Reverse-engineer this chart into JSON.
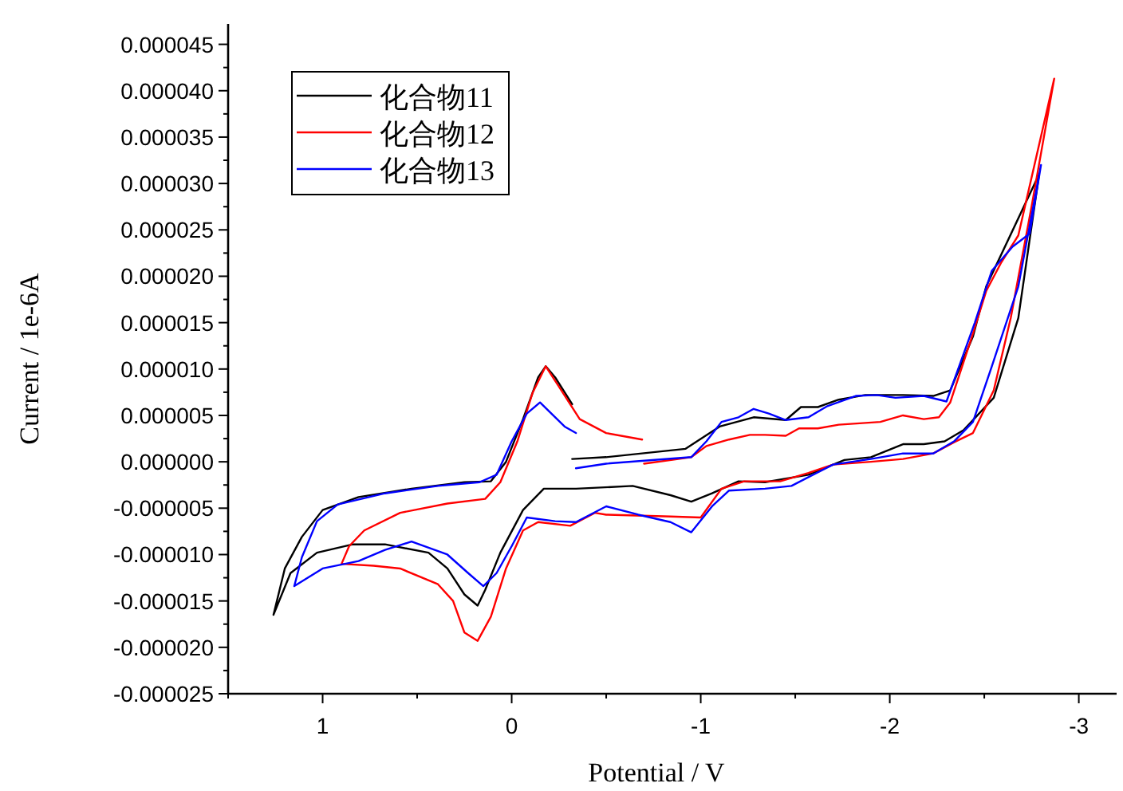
{
  "chart_data": {
    "type": "line",
    "xlabel": "Potential / V",
    "ylabel": "Current / 1e-6A",
    "legend": "top left",
    "xlim": [
      1.5,
      -3.2
    ],
    "ylim": [
      -2.5e-05,
      4.72e-05
    ],
    "xticks": [
      {
        "value": 1.5,
        "label": null
      },
      1,
      {
        "value": 0.5,
        "label": null
      },
      0,
      {
        "value": -0.5,
        "label": null
      },
      -1,
      {
        "value": -1.5,
        "label": null
      },
      -2,
      {
        "value": -2.5,
        "label": null
      },
      -3
    ],
    "yticks": [
      {
        "value": -2.5e-05,
        "label": "-0.000025"
      },
      {
        "value": -2.25e-05,
        "label": null
      },
      {
        "value": -2e-05,
        "label": "-0.000020"
      },
      {
        "value": -1.75e-05,
        "label": null
      },
      {
        "value": -1.5e-05,
        "label": "-0.000015"
      },
      {
        "value": -1.25e-05,
        "label": null
      },
      {
        "value": -1e-05,
        "label": "-0.000010"
      },
      {
        "value": -7.5e-06,
        "label": null
      },
      {
        "value": -5e-06,
        "label": "-0.000005"
      },
      {
        "value": -2.5e-06,
        "label": null
      },
      {
        "value": 0,
        "label": "0.000000"
      },
      {
        "value": 2.5e-06,
        "label": null
      },
      {
        "value": 5e-06,
        "label": "0.000005"
      },
      {
        "value": 7.5e-06,
        "label": null
      },
      {
        "value": 1e-05,
        "label": "0.000010"
      },
      {
        "value": 1.25e-05,
        "label": null
      },
      {
        "value": 1.5e-05,
        "label": "0.000015"
      },
      {
        "value": 1.75e-05,
        "label": null
      },
      {
        "value": 2e-05,
        "label": "0.000020"
      },
      {
        "value": 2.25e-05,
        "label": null
      },
      {
        "value": 2.5e-05,
        "label": "0.000025"
      },
      {
        "value": 2.75e-05,
        "label": null
      },
      {
        "value": 3e-05,
        "label": "0.000030"
      },
      {
        "value": 3.25e-05,
        "label": null
      },
      {
        "value": 3.5e-05,
        "label": "0.000035"
      },
      {
        "value": 3.75e-05,
        "label": null
      },
      {
        "value": 4e-05,
        "label": "0.000040"
      },
      {
        "value": 4.25e-05,
        "label": null
      },
      {
        "value": 4.5e-05,
        "label": "0.000045"
      }
    ],
    "series": [
      {
        "name": "化合物11",
        "color": "#000000",
        "x": [
          -0.32,
          -0.5,
          -0.92,
          -1.1,
          -1.28,
          -1.45,
          -1.53,
          -1.62,
          -1.73,
          -1.87,
          -2.07,
          -2.23,
          -2.32,
          -2.44,
          -2.51,
          -2.79,
          -2.68,
          -2.55,
          -2.39,
          -2.29,
          -2.18,
          -2.07,
          -1.9,
          -1.76,
          -1.57,
          -1.34,
          -1.2,
          -1.06,
          -0.95,
          -0.84,
          -0.64,
          -0.34,
          -0.17,
          -0.06,
          0.06,
          0.14,
          0.18,
          0.25,
          0.34,
          0.44,
          0.67,
          0.84,
          1.03,
          1.17,
          1.26,
          1.2,
          1.11,
          1.0,
          0.81,
          0.53,
          0.25,
          0.11,
          0.03,
          -0.06,
          -0.14,
          -0.18,
          -0.23,
          -0.32
        ],
        "values": [
          3e-07,
          5e-07,
          1.4e-06,
          3.8e-06,
          4.8e-06,
          4.5e-06,
          5.9e-06,
          5.9e-06,
          6.7e-06,
          7.2e-06,
          7.2e-06,
          7.1e-06,
          7.7e-06,
          1.35e-05,
          1.89e-05,
          3.1e-05,
          1.55e-05,
          6.9e-06,
          3.4e-06,
          2.2e-06,
          1.9e-06,
          1.9e-06,
          5e-07,
          2e-07,
          -1.4e-06,
          -2.2e-06,
          -2.1e-06,
          -3.4e-06,
          -4.3e-06,
          -3.6e-06,
          -2.6e-06,
          -2.9e-06,
          -2.9e-06,
          -5.2e-06,
          -9.8e-06,
          -1.38e-05,
          -1.55e-05,
          -1.43e-05,
          -1.15e-05,
          -9.8e-06,
          -8.9e-06,
          -8.9e-06,
          -9.8e-06,
          -1.2e-05,
          -1.65e-05,
          -1.15e-05,
          -8.1e-06,
          -5.2e-06,
          -3.8e-06,
          -2.9e-06,
          -2.2e-06,
          -2.1e-06,
          0,
          4.6e-06,
          9.1e-06,
          1.03e-05,
          9.1e-06,
          6.2e-06
        ]
      },
      {
        "name": "化合物12",
        "color": "#ff0000",
        "x": [
          -0.7,
          -0.95,
          -1.03,
          -1.15,
          -1.26,
          -1.34,
          -1.45,
          -1.52,
          -1.62,
          -1.73,
          -1.95,
          -2.07,
          -2.18,
          -2.26,
          -2.32,
          -2.43,
          -2.51,
          -2.59,
          -2.68,
          -2.87,
          -2.75,
          -2.64,
          -2.55,
          -2.44,
          -2.34,
          -2.23,
          -2.07,
          -1.9,
          -1.7,
          -1.57,
          -1.42,
          -1.23,
          -1.11,
          -1.0,
          -0.84,
          -0.5,
          -0.44,
          -0.31,
          -0.14,
          -0.06,
          0.03,
          0.11,
          0.18,
          0.25,
          0.31,
          0.39,
          0.59,
          0.73,
          0.9,
          0.86,
          0.78,
          0.59,
          0.34,
          0.14,
          0.06,
          -0.03,
          -0.11,
          -0.18,
          -0.25,
          -0.36,
          -0.5,
          -0.69
        ],
        "values": [
          -2e-07,
          5e-07,
          1.7e-06,
          2.4e-06,
          2.9e-06,
          2.9e-06,
          2.8e-06,
          3.6e-06,
          3.6e-06,
          4e-06,
          4.3e-06,
          5e-06,
          4.6e-06,
          4.8e-06,
          6.4e-06,
          1.32e-05,
          1.84e-05,
          2.15e-05,
          2.44e-05,
          4.13e-05,
          2.75e-05,
          1.55e-05,
          7.7e-06,
          3.1e-06,
          2.1e-06,
          9e-07,
          3e-07,
          0,
          -3e-07,
          -1.2e-06,
          -2.1e-06,
          -2.1e-06,
          -2.9e-06,
          -6e-06,
          -5.9e-06,
          -5.7e-06,
          -5.5e-06,
          -6.9e-06,
          -6.5e-06,
          -7.4e-06,
          -1.15e-05,
          -1.67e-05,
          -1.93e-05,
          -1.84e-05,
          -1.5e-05,
          -1.32e-05,
          -1.15e-05,
          -1.12e-05,
          -1.1e-05,
          -9.1e-06,
          -7.4e-06,
          -5.5e-06,
          -4.5e-06,
          -4e-06,
          -2.2e-06,
          2.2e-06,
          7.4e-06,
          1.03e-05,
          8.1e-06,
          4.6e-06,
          3.1e-06,
          2.4e-06
        ]
      },
      {
        "name": "化合物13",
        "color": "#0000ff",
        "x": [
          -0.34,
          -0.5,
          -0.95,
          -1.03,
          -1.11,
          -1.2,
          -1.28,
          -1.36,
          -1.45,
          -1.57,
          -1.67,
          -1.82,
          -1.93,
          -2.03,
          -2.18,
          -2.3,
          -2.45,
          -2.54,
          -2.65,
          -2.74,
          -2.8,
          -2.68,
          -2.54,
          -2.44,
          -2.34,
          -2.23,
          -2.07,
          -1.9,
          -1.7,
          -1.48,
          -1.34,
          -1.15,
          -1.06,
          -0.95,
          -0.84,
          -0.67,
          -0.5,
          -0.34,
          -0.23,
          -0.08,
          0,
          0.08,
          0.15,
          0.23,
          0.34,
          0.53,
          0.67,
          0.81,
          1.0,
          1.15,
          1.11,
          1.03,
          0.92,
          0.67,
          0.39,
          0.17,
          0.08,
          0,
          -0.08,
          -0.15,
          -0.21,
          -0.28,
          -0.34
        ],
        "values": [
          -7e-07,
          -2e-07,
          5e-07,
          2.2e-06,
          4.3e-06,
          4.8e-06,
          5.7e-06,
          5.2e-06,
          4.5e-06,
          4.8e-06,
          6e-06,
          7.1e-06,
          7.2e-06,
          6.9e-06,
          7.1e-06,
          6.5e-06,
          1.5e-05,
          2.06e-05,
          2.32e-05,
          2.46e-05,
          3.2e-05,
          1.89e-05,
          1.03e-05,
          4.3e-06,
          2.2e-06,
          9e-07,
          9e-07,
          3e-07,
          -3e-07,
          -2.6e-06,
          -2.9e-06,
          -3.1e-06,
          -4.8e-06,
          -7.6e-06,
          -6.5e-06,
          -5.7e-06,
          -4.8e-06,
          -6.5e-06,
          -6.4e-06,
          -6e-06,
          -9.1e-06,
          -1.2e-05,
          -1.34e-05,
          -1.2e-05,
          -1e-05,
          -8.6e-06,
          -9.5e-06,
          -1.07e-05,
          -1.15e-05,
          -1.34e-05,
          -1.03e-05,
          -6.4e-06,
          -4.6e-06,
          -3.4e-06,
          -2.6e-06,
          -2.2e-06,
          -1.4e-06,
          2.2e-06,
          5.2e-06,
          6.4e-06,
          5.2e-06,
          3.8e-06,
          3.1e-06
        ]
      }
    ]
  }
}
